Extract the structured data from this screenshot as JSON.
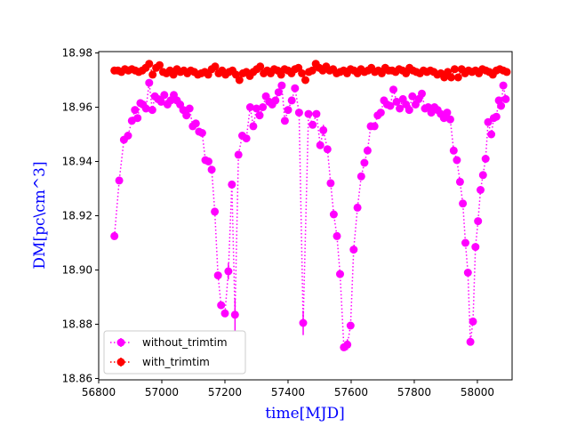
{
  "chart_data": {
    "type": "scatter",
    "xlabel": "time[MJD]",
    "ylabel": "DM[pc\\cm^3]",
    "xlim": [
      56800,
      58110
    ],
    "ylim": [
      18.8595,
      18.9805
    ],
    "xticks": [
      56800,
      57000,
      57200,
      57400,
      57600,
      57800,
      58000
    ],
    "yticks": [
      18.86,
      18.88,
      18.9,
      18.92,
      18.94,
      18.96,
      18.98
    ],
    "ytick_labels": [
      "18.86",
      "18.88",
      "18.90",
      "18.92",
      "18.94",
      "18.96",
      "18.98"
    ],
    "legend_position": "lower-left",
    "series": [
      {
        "name": "without_trimtim",
        "color": "#ff00ff",
        "linestyle": "dotted",
        "marker": "circle",
        "points": [
          [
            56850,
            18.9125
          ],
          [
            56865,
            18.933
          ],
          [
            56880,
            18.948
          ],
          [
            56893,
            18.9495
          ],
          [
            56905,
            18.955
          ],
          [
            56915,
            18.959
          ],
          [
            56923,
            18.956
          ],
          [
            56932,
            18.9615
          ],
          [
            56940,
            18.961
          ],
          [
            56950,
            18.9595
          ],
          [
            56960,
            18.969
          ],
          [
            56970,
            18.959
          ],
          [
            56978,
            18.964
          ],
          [
            56988,
            18.963
          ],
          [
            56998,
            18.962
          ],
          [
            57008,
            18.9645
          ],
          [
            57018,
            18.961
          ],
          [
            57028,
            18.9625
          ],
          [
            57038,
            18.9645
          ],
          [
            57048,
            18.9625
          ],
          [
            57058,
            18.961
          ],
          [
            57068,
            18.959
          ],
          [
            57078,
            18.957
          ],
          [
            57088,
            18.9595
          ],
          [
            57098,
            18.953
          ],
          [
            57108,
            18.954
          ],
          [
            57118,
            18.951
          ],
          [
            57128,
            18.9505
          ],
          [
            57138,
            18.9405
          ],
          [
            57148,
            18.94
          ],
          [
            57158,
            18.937
          ],
          [
            57168,
            18.9215
          ],
          [
            57178,
            18.898
          ],
          [
            57188,
            18.887
          ],
          [
            57200,
            18.884
          ],
          [
            57211,
            18.8995
          ],
          [
            57222,
            18.9315
          ],
          [
            57232,
            18.8835
          ],
          [
            57243,
            18.9425
          ],
          [
            57255,
            18.9495
          ],
          [
            57268,
            18.9485
          ],
          [
            57280,
            18.96
          ],
          [
            57290,
            18.953
          ],
          [
            57300,
            18.9595
          ],
          [
            57310,
            18.957
          ],
          [
            57320,
            18.96
          ],
          [
            57330,
            18.964
          ],
          [
            57340,
            18.962
          ],
          [
            57350,
            18.961
          ],
          [
            57360,
            18.9625
          ],
          [
            57370,
            18.9655
          ],
          [
            57380,
            18.968
          ],
          [
            57390,
            18.955
          ],
          [
            57400,
            18.959
          ],
          [
            57412,
            18.9625
          ],
          [
            57422,
            18.967
          ],
          [
            57435,
            18.958
          ],
          [
            57448,
            18.8805
          ],
          [
            57465,
            18.9575
          ],
          [
            57478,
            18.9535
          ],
          [
            57490,
            18.9575
          ],
          [
            57502,
            18.946
          ],
          [
            57512,
            18.9515
          ],
          [
            57525,
            18.9445
          ],
          [
            57535,
            18.932
          ],
          [
            57545,
            18.9205
          ],
          [
            57555,
            18.9125
          ],
          [
            57565,
            18.8985
          ],
          [
            57577,
            18.8715
          ],
          [
            57588,
            18.8725
          ],
          [
            57598,
            18.8795
          ],
          [
            57608,
            18.9075
          ],
          [
            57620,
            18.923
          ],
          [
            57632,
            18.9345
          ],
          [
            57642,
            18.9395
          ],
          [
            57652,
            18.944
          ],
          [
            57662,
            18.953
          ],
          [
            57674,
            18.953
          ],
          [
            57684,
            18.957
          ],
          [
            57694,
            18.958
          ],
          [
            57704,
            18.9625
          ],
          [
            57714,
            18.961
          ],
          [
            57724,
            18.9605
          ],
          [
            57734,
            18.9665
          ],
          [
            57744,
            18.962
          ],
          [
            57754,
            18.9595
          ],
          [
            57764,
            18.963
          ],
          [
            57774,
            18.961
          ],
          [
            57784,
            18.959
          ],
          [
            57794,
            18.964
          ],
          [
            57804,
            18.961
          ],
          [
            57814,
            18.963
          ],
          [
            57824,
            18.965
          ],
          [
            57834,
            18.9595
          ],
          [
            57844,
            18.96
          ],
          [
            57854,
            18.958
          ],
          [
            57864,
            18.96
          ],
          [
            57874,
            18.959
          ],
          [
            57884,
            18.9575
          ],
          [
            57894,
            18.956
          ],
          [
            57904,
            18.958
          ],
          [
            57914,
            18.9555
          ],
          [
            57925,
            18.944
          ],
          [
            57935,
            18.9405
          ],
          [
            57945,
            18.9325
          ],
          [
            57954,
            18.9245
          ],
          [
            57962,
            18.91
          ],
          [
            57970,
            18.899
          ],
          [
            57978,
            18.8735
          ],
          [
            57986,
            18.881
          ],
          [
            57994,
            18.9085
          ],
          [
            58002,
            18.918
          ],
          [
            58010,
            18.9295
          ],
          [
            58018,
            18.935
          ],
          [
            58026,
            18.941
          ],
          [
            58034,
            18.9545
          ],
          [
            58044,
            18.95
          ],
          [
            58052,
            18.956
          ],
          [
            58060,
            18.9565
          ],
          [
            58068,
            18.9625
          ],
          [
            58075,
            18.9605
          ],
          [
            58082,
            18.968
          ],
          [
            58090,
            18.963
          ]
        ],
        "errorbars": [
          [
            57211,
            18.8995,
            0.003
          ],
          [
            57232,
            18.8835,
            0.006
          ],
          [
            57448,
            18.8805,
            0.0045
          ],
          [
            57512,
            18.9515,
            0.002
          ],
          [
            57588,
            18.8725,
            0.002
          ]
        ]
      },
      {
        "name": "with_trimtim",
        "color": "#ff0000",
        "linestyle": "dotted",
        "marker": "circle",
        "points": [
          [
            56850,
            18.9735
          ],
          [
            56861,
            18.9735
          ],
          [
            56872,
            18.973
          ],
          [
            56883,
            18.974
          ],
          [
            56894,
            18.9735
          ],
          [
            56905,
            18.974
          ],
          [
            56916,
            18.9735
          ],
          [
            56927,
            18.973
          ],
          [
            56938,
            18.9735
          ],
          [
            56949,
            18.9745
          ],
          [
            56960,
            18.976
          ],
          [
            56971,
            18.972
          ],
          [
            56982,
            18.9745
          ],
          [
            56993,
            18.9755
          ],
          [
            57004,
            18.973
          ],
          [
            57015,
            18.9725
          ],
          [
            57026,
            18.9735
          ],
          [
            57037,
            18.972
          ],
          [
            57048,
            18.974
          ],
          [
            57059,
            18.973
          ],
          [
            57070,
            18.9735
          ],
          [
            57081,
            18.9725
          ],
          [
            57092,
            18.9735
          ],
          [
            57103,
            18.973
          ],
          [
            57114,
            18.972
          ],
          [
            57125,
            18.9725
          ],
          [
            57136,
            18.973
          ],
          [
            57147,
            18.972
          ],
          [
            57158,
            18.974
          ],
          [
            57169,
            18.975
          ],
          [
            57180,
            18.9725
          ],
          [
            57191,
            18.9735
          ],
          [
            57202,
            18.972
          ],
          [
            57213,
            18.973
          ],
          [
            57224,
            18.9735
          ],
          [
            57235,
            18.972
          ],
          [
            57246,
            18.97
          ],
          [
            57257,
            18.9725
          ],
          [
            57268,
            18.973
          ],
          [
            57279,
            18.9715
          ],
          [
            57290,
            18.973
          ],
          [
            57301,
            18.974
          ],
          [
            57312,
            18.975
          ],
          [
            57323,
            18.9725
          ],
          [
            57334,
            18.9735
          ],
          [
            57345,
            18.9725
          ],
          [
            57356,
            18.974
          ],
          [
            57367,
            18.9735
          ],
          [
            57378,
            18.972
          ],
          [
            57389,
            18.974
          ],
          [
            57400,
            18.9735
          ],
          [
            57411,
            18.9725
          ],
          [
            57422,
            18.974
          ],
          [
            57433,
            18.9745
          ],
          [
            57444,
            18.9725
          ],
          [
            57455,
            18.97
          ],
          [
            57466,
            18.973
          ],
          [
            57477,
            18.9735
          ],
          [
            57488,
            18.976
          ],
          [
            57499,
            18.9745
          ],
          [
            57510,
            18.9735
          ],
          [
            57521,
            18.975
          ],
          [
            57532,
            18.9735
          ],
          [
            57543,
            18.974
          ],
          [
            57554,
            18.9725
          ],
          [
            57565,
            18.973
          ],
          [
            57576,
            18.9735
          ],
          [
            57587,
            18.9725
          ],
          [
            57598,
            18.974
          ],
          [
            57609,
            18.9735
          ],
          [
            57620,
            18.9725
          ],
          [
            57631,
            18.974
          ],
          [
            57642,
            18.973
          ],
          [
            57653,
            18.9735
          ],
          [
            57664,
            18.9745
          ],
          [
            57675,
            18.973
          ],
          [
            57686,
            18.9735
          ],
          [
            57697,
            18.9725
          ],
          [
            57708,
            18.9745
          ],
          [
            57719,
            18.9735
          ],
          [
            57730,
            18.9735
          ],
          [
            57741,
            18.973
          ],
          [
            57752,
            18.974
          ],
          [
            57763,
            18.9735
          ],
          [
            57774,
            18.9725
          ],
          [
            57785,
            18.9745
          ],
          [
            57796,
            18.9735
          ],
          [
            57807,
            18.973
          ],
          [
            57818,
            18.9725
          ],
          [
            57829,
            18.9735
          ],
          [
            57840,
            18.973
          ],
          [
            57851,
            18.9735
          ],
          [
            57862,
            18.973
          ],
          [
            57873,
            18.972
          ],
          [
            57884,
            18.9725
          ],
          [
            57895,
            18.971
          ],
          [
            57906,
            18.973
          ],
          [
            57917,
            18.971
          ],
          [
            57928,
            18.974
          ],
          [
            57939,
            18.971
          ],
          [
            57950,
            18.974
          ],
          [
            57961,
            18.9725
          ],
          [
            57972,
            18.9735
          ],
          [
            57983,
            18.973
          ],
          [
            57994,
            18.9735
          ],
          [
            58005,
            18.9725
          ],
          [
            58016,
            18.974
          ],
          [
            58027,
            18.9735
          ],
          [
            58038,
            18.973
          ],
          [
            58049,
            18.972
          ],
          [
            58060,
            18.9735
          ],
          [
            58071,
            18.974
          ],
          [
            58082,
            18.9735
          ],
          [
            58093,
            18.973
          ]
        ],
        "errorbars": []
      }
    ]
  }
}
